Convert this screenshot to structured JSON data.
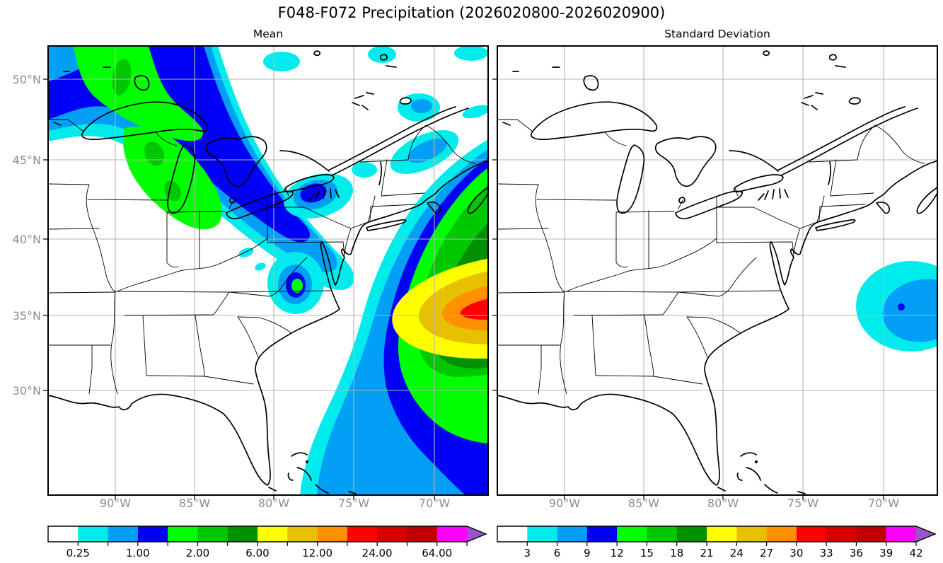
{
  "title": "F048-F072 Precipitation (2026020800-2026020900)",
  "panels": [
    {
      "subtitle": "Mean",
      "x_tick_labels": [
        "90°W",
        "85°W",
        "80°W",
        "75°W",
        "70°W"
      ],
      "y_tick_labels": [
        "50°N",
        "45°N",
        "40°N",
        "35°N",
        "30°N"
      ]
    },
    {
      "subtitle": "Standard Deviation",
      "x_tick_labels": [
        "90°W",
        "85°W",
        "80°W",
        "75°W",
        "70°W"
      ],
      "y_tick_labels": []
    }
  ],
  "palette": {
    "colors": [
      "#ffffff",
      "#00ecec",
      "#01a0f6",
      "#0000f6",
      "#00ff00",
      "#00c800",
      "#009000",
      "#ffff00",
      "#e7c000",
      "#ff9000",
      "#ff0000",
      "#d60000",
      "#c00000",
      "#ff00ff",
      "#9955c9"
    ]
  },
  "colorbars": [
    {
      "id": "mean",
      "labels": [
        "0.25",
        "",
        "1.00",
        "",
        "2.00",
        "",
        "6.00",
        "",
        "12.00",
        "",
        "24.00",
        "",
        "64.00",
        ""
      ]
    },
    {
      "id": "std",
      "labels": [
        "3",
        "6",
        "9",
        "12",
        "15",
        "18",
        "21",
        "24",
        "27",
        "30",
        "33",
        "36",
        "39",
        "42"
      ]
    }
  ],
  "colors": {
    "grid": "#b4b4b4",
    "tick_label": "#8c8c8c",
    "coastline": "#000000",
    "background": "#ffffff"
  },
  "chart_data": [
    {
      "type": "heatmap",
      "subtype": "filled-contour-map",
      "title": "Mean",
      "region": "Eastern North America and western Atlantic",
      "x_ticks": [
        "90°W",
        "85°W",
        "80°W",
        "75°W",
        "70°W"
      ],
      "y_ticks": [
        "50°N",
        "45°N",
        "40°N",
        "35°N",
        "30°N"
      ],
      "levels": [
        0.25,
        0.5,
        1.0,
        1.5,
        2.0,
        4.0,
        6.0,
        8.0,
        12.0,
        16.0,
        24.0,
        32.0,
        64.0,
        96.0
      ],
      "labeled_levels": [
        0.25,
        1.0,
        2.0,
        6.0,
        12.0,
        24.0,
        64.0
      ],
      "grid": true,
      "legend_position": "bottom",
      "features": [
        "SW-NE precipitation band (0.25-4, green core 1.5-4) from upper Midwest across the Great Lakes into Quebec",
        "Large offshore Atlantic maximum centered near 37N 68W with nested bands up to the 16-24 bin (red core at the east edge)",
        "Small local maximum (to ~2) over West Virginia / Virginia near 37.5N 81W",
        "Small blue maximum (1-1.5) over central New York near 43N 75.5W",
        "Broad 0.5-1.0 light-blue area over the Bahamas and Florida east coast",
        "Southeast US interior and lower Mississippi valley mostly below 0.25 (white)"
      ]
    },
    {
      "type": "heatmap",
      "subtype": "filled-contour-map",
      "title": "Standard Deviation",
      "region": "Eastern North America and western Atlantic",
      "x_ticks": [
        "90°W",
        "85°W",
        "80°W",
        "75°W",
        "70°W"
      ],
      "y_ticks": [
        "50°N",
        "45°N",
        "40°N",
        "35°N",
        "30°N"
      ],
      "levels": [
        3,
        6,
        9,
        12,
        15,
        18,
        21,
        24,
        27,
        30,
        33,
        36,
        39,
        42
      ],
      "labeled_levels": [
        3,
        6,
        9,
        12,
        15,
        18,
        21,
        24,
        27,
        30,
        33,
        36,
        39,
        42
      ],
      "grid": true,
      "legend_position": "bottom",
      "features": [
        "Nearly everywhere below 3 (white)",
        "Single spread maximum off the mid-Atlantic coast near 36.5N 68W: cyan 3-6, light-blue 6-9, tiny blue dot 9-12"
      ]
    }
  ]
}
